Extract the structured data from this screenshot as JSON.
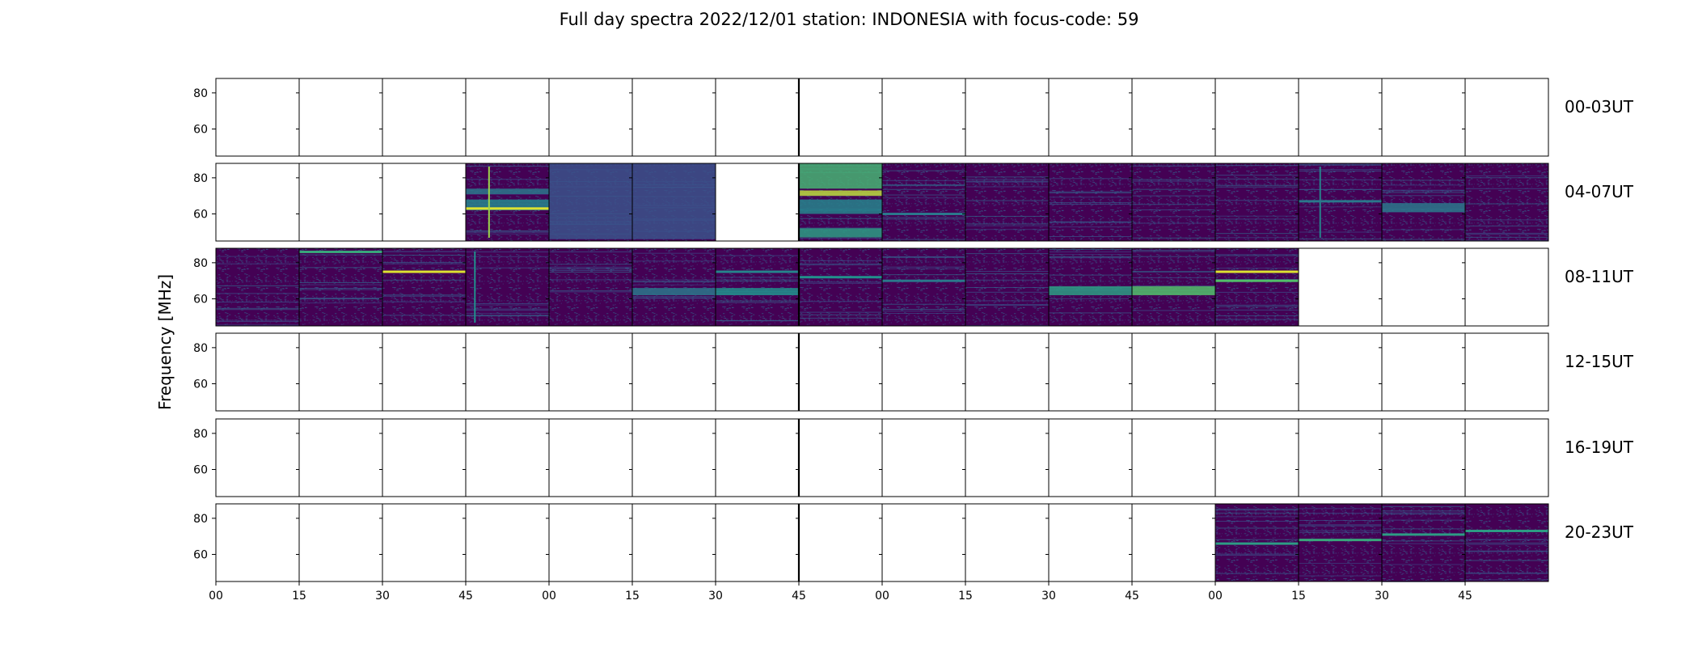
{
  "chart_data": {
    "type": "heatmap",
    "title": "Full day spectra 2022/12/01 station: INDONESIA with focus-code: 59",
    "ylabel": "Frequency [MHz]",
    "ylim": [
      45,
      88
    ],
    "yticks": [
      "80",
      "60"
    ],
    "ytick_values": [
      80,
      60
    ],
    "xticks": [
      "00",
      "15",
      "30",
      "45",
      "00",
      "15",
      "30",
      "45",
      "00",
      "15",
      "30",
      "45",
      "00",
      "15",
      "30",
      "45"
    ],
    "panels_per_row": 16,
    "colormap": [
      "#440154",
      "#3b528b",
      "#21918c",
      "#5ec962",
      "#fde725"
    ],
    "rows": [
      {
        "label": "00-03UT",
        "filled": [
          false,
          false,
          false,
          false,
          false,
          false,
          false,
          false,
          false,
          false,
          false,
          false,
          false,
          false,
          false,
          false
        ],
        "features": []
      },
      {
        "label": "04-07UT",
        "filled": [
          false,
          false,
          false,
          true,
          true,
          true,
          false,
          true,
          true,
          true,
          true,
          true,
          true,
          true,
          true,
          true
        ],
        "features": [
          {
            "panel": 3,
            "kind": "band",
            "f0": 62,
            "f1": 68,
            "level": 0.45
          },
          {
            "panel": 3,
            "kind": "band",
            "f0": 71,
            "f1": 74,
            "level": 0.4
          },
          {
            "panel": 3,
            "kind": "line",
            "f": 63,
            "level": 0.95
          },
          {
            "panel": 3,
            "kind": "vline",
            "t": 0.27,
            "level": 0.85
          },
          {
            "panel": 4,
            "kind": "band",
            "f0": 46,
            "f1": 88,
            "level": 0.25
          },
          {
            "panel": 5,
            "kind": "band",
            "f0": 46,
            "f1": 88,
            "level": 0.25
          },
          {
            "panel": 7,
            "kind": "band",
            "f0": 74,
            "f1": 88,
            "level": 0.65
          },
          {
            "panel": 7,
            "kind": "band",
            "f0": 70,
            "f1": 73,
            "level": 0.9
          },
          {
            "panel": 7,
            "kind": "band",
            "f0": 60,
            "f1": 68,
            "level": 0.45
          },
          {
            "panel": 7,
            "kind": "band",
            "f0": 47,
            "f1": 52,
            "level": 0.55
          },
          {
            "panel": 8,
            "kind": "line",
            "f": 60,
            "level": 0.4
          },
          {
            "panel": 13,
            "kind": "vline",
            "t": 0.25,
            "level": 0.45
          },
          {
            "panel": 13,
            "kind": "line",
            "f": 67,
            "level": 0.4
          },
          {
            "panel": 14,
            "kind": "band",
            "f0": 61,
            "f1": 66,
            "level": 0.4
          }
        ]
      },
      {
        "label": "08-11UT",
        "filled": [
          true,
          true,
          true,
          true,
          true,
          true,
          true,
          true,
          true,
          true,
          true,
          true,
          true,
          false,
          false,
          false
        ],
        "features": [
          {
            "panel": 1,
            "kind": "line",
            "f": 86,
            "level": 0.6
          },
          {
            "panel": 2,
            "kind": "line",
            "f": 75,
            "level": 0.95
          },
          {
            "panel": 3,
            "kind": "vline",
            "t": 0.1,
            "level": 0.5
          },
          {
            "panel": 5,
            "kind": "band",
            "f0": 62,
            "f1": 66,
            "level": 0.4
          },
          {
            "panel": 6,
            "kind": "band",
            "f0": 62,
            "f1": 66,
            "level": 0.5
          },
          {
            "panel": 6,
            "kind": "line",
            "f": 75,
            "level": 0.45
          },
          {
            "panel": 7,
            "kind": "line",
            "f": 72,
            "level": 0.5
          },
          {
            "panel": 8,
            "kind": "line",
            "f": 70,
            "level": 0.4
          },
          {
            "panel": 10,
            "kind": "band",
            "f0": 62,
            "f1": 67,
            "level": 0.55
          },
          {
            "panel": 11,
            "kind": "band",
            "f0": 62,
            "f1": 67,
            "level": 0.7
          },
          {
            "panel": 12,
            "kind": "line",
            "f": 75,
            "level": 0.95
          },
          {
            "panel": 12,
            "kind": "line",
            "f": 70,
            "level": 0.7
          }
        ]
      },
      {
        "label": "12-15UT",
        "filled": [
          false,
          false,
          false,
          false,
          false,
          false,
          false,
          false,
          false,
          false,
          false,
          false,
          false,
          false,
          false,
          false
        ],
        "features": []
      },
      {
        "label": "16-19UT",
        "filled": [
          false,
          false,
          false,
          false,
          false,
          false,
          false,
          false,
          false,
          false,
          false,
          false,
          false,
          false,
          false,
          false
        ],
        "features": []
      },
      {
        "label": "20-23UT",
        "filled": [
          false,
          false,
          false,
          false,
          false,
          false,
          false,
          false,
          false,
          false,
          false,
          false,
          true,
          true,
          true,
          true
        ],
        "features": [
          {
            "panel": 12,
            "kind": "line",
            "f": 66,
            "level": 0.55
          },
          {
            "panel": 13,
            "kind": "line",
            "f": 68,
            "level": 0.6
          },
          {
            "panel": 14,
            "kind": "line",
            "f": 71,
            "level": 0.55
          },
          {
            "panel": 15,
            "kind": "line",
            "f": 73,
            "level": 0.55
          }
        ]
      }
    ]
  }
}
